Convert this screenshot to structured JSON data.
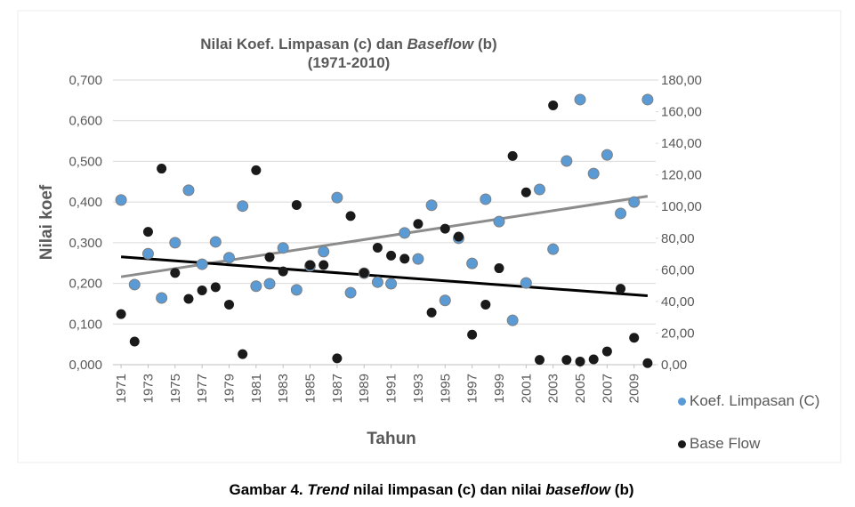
{
  "chart_data": {
    "type": "scatter",
    "title": [
      "Nilai Koef. Limpasan (c) dan ",
      "Baseflow",
      " (b)"
    ],
    "subtitle": "(1971-2010)",
    "x_label": "Tahun",
    "y_label": "Nilai koef",
    "caption": [
      "Gambar 4. ",
      "Trend",
      " nilai limpasan (c) dan nilai ",
      "baseflow",
      " (b)"
    ],
    "x": [
      1971,
      1972,
      1973,
      1974,
      1975,
      1976,
      1977,
      1978,
      1979,
      1980,
      1981,
      1982,
      1983,
      1984,
      1985,
      1986,
      1987,
      1988,
      1989,
      1990,
      1991,
      1992,
      1993,
      1994,
      1995,
      1996,
      1997,
      1998,
      1999,
      2000,
      2001,
      2002,
      2003,
      2004,
      2005,
      2006,
      2007,
      2008,
      2009,
      2010
    ],
    "xlim": [
      1970.4,
      2010.6
    ],
    "xticks": [
      1971,
      1973,
      1975,
      1977,
      1979,
      1981,
      1983,
      1985,
      1987,
      1989,
      1991,
      1993,
      1995,
      1997,
      1999,
      2001,
      2003,
      2005,
      2007,
      2009
    ],
    "ylim": [
      0,
      0.7
    ],
    "yticks": [
      {
        "value": 0,
        "label": "0,000"
      },
      {
        "value": 0.1,
        "label": "0,100"
      },
      {
        "value": 0.2,
        "label": "0,200"
      },
      {
        "value": 0.3,
        "label": "0,300"
      },
      {
        "value": 0.4,
        "label": "0,400"
      },
      {
        "value": 0.5,
        "label": "0,500"
      },
      {
        "value": 0.6,
        "label": "0,600"
      },
      {
        "value": 0.7,
        "label": "0,700"
      }
    ],
    "y2lim": [
      0,
      180
    ],
    "y2ticks": [
      {
        "value": 0,
        "label": "0,00"
      },
      {
        "value": 20,
        "label": "20,00"
      },
      {
        "value": 40,
        "label": "40,00"
      },
      {
        "value": 60,
        "label": "60,00"
      },
      {
        "value": 80,
        "label": "80,00"
      },
      {
        "value": 100,
        "label": "100,00"
      },
      {
        "value": 120,
        "label": "120,00"
      },
      {
        "value": 140,
        "label": "140,00"
      },
      {
        "value": 160,
        "label": "160,00"
      },
      {
        "value": 180,
        "label": "180,00"
      }
    ],
    "grid": true,
    "legend": "right",
    "series": [
      {
        "name": "Koef. Limpasan (C)",
        "color": "#5b9bd5",
        "trend_color": "#8c8c8c",
        "values": [
          0.405,
          0.197,
          0.273,
          0.164,
          0.3,
          0.429,
          0.247,
          0.302,
          0.263,
          0.39,
          0.193,
          0.199,
          0.287,
          0.184,
          0.243,
          0.278,
          0.411,
          0.177,
          0.225,
          0.203,
          0.199,
          0.324,
          0.26,
          0.392,
          0.158,
          0.311,
          0.249,
          0.407,
          0.352,
          0.109,
          0.201,
          0.431,
          0.284,
          0.501,
          0.652,
          0.47,
          0.516,
          0.372,
          0.4,
          0.652
        ]
      },
      {
        "name": "Base Flow",
        "color": "#1a1a1a",
        "trend_color": "#000000",
        "axis": "y2",
        "values": [
          32,
          14.6,
          84,
          124,
          58,
          41.6,
          47,
          49,
          38,
          6.7,
          123,
          68,
          59,
          101,
          63,
          63,
          4,
          94,
          58,
          74,
          69,
          67,
          89,
          33,
          86,
          81,
          19,
          38,
          61,
          132,
          109,
          3,
          164,
          3,
          2,
          3.4,
          8.4,
          48,
          17,
          1
        ]
      }
    ]
  }
}
